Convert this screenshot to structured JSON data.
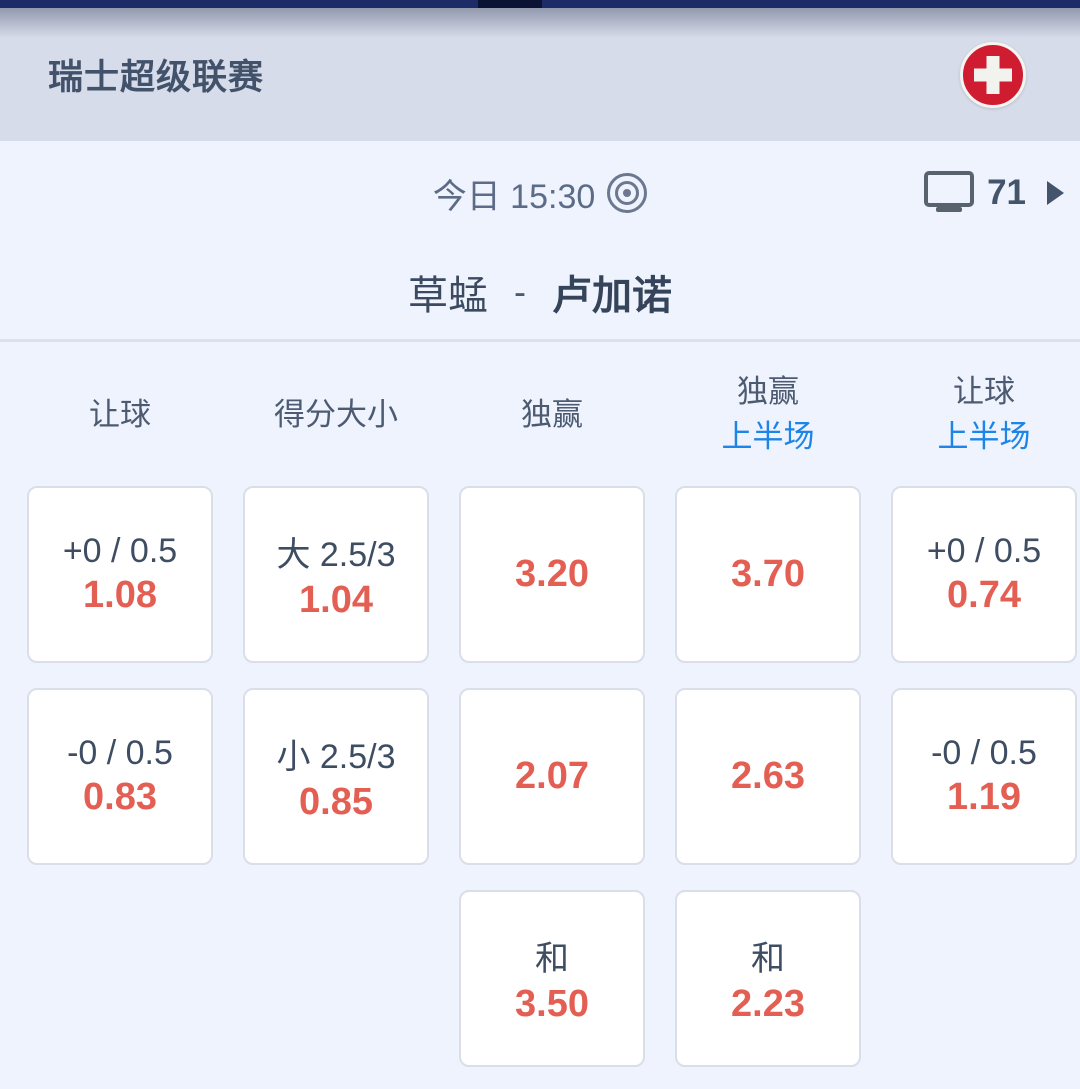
{
  "league_header": {
    "title": "瑞士超级联赛",
    "flag": "swiss-flag"
  },
  "match": {
    "time_label": "今日 15:30",
    "channel_count": "71",
    "home_team": "草蜢",
    "separator": "-",
    "away_team": "卢加诺"
  },
  "market_headers": [
    {
      "label": "让球",
      "sub": ""
    },
    {
      "label": "得分大小",
      "sub": ""
    },
    {
      "label": "独赢",
      "sub": ""
    },
    {
      "label": "独赢",
      "sub": "上半场"
    },
    {
      "label": "让球",
      "sub": "上半场"
    }
  ],
  "odds_rows": [
    [
      {
        "line": "+0 / 0.5",
        "odds": "1.08"
      },
      {
        "line": "大 2.5/3",
        "odds": "1.04"
      },
      {
        "line": "",
        "odds": "3.20"
      },
      {
        "line": "",
        "odds": "3.70"
      },
      {
        "line": "+0 / 0.5",
        "odds": "0.74"
      }
    ],
    [
      {
        "line": "-0 / 0.5",
        "odds": "0.83"
      },
      {
        "line": "小 2.5/3",
        "odds": "0.85"
      },
      {
        "line": "",
        "odds": "2.07"
      },
      {
        "line": "",
        "odds": "2.63"
      },
      {
        "line": "-0 / 0.5",
        "odds": "1.19"
      }
    ],
    [
      null,
      null,
      {
        "line": "和",
        "odds": "3.50"
      },
      {
        "line": "和",
        "odds": "2.23"
      },
      null
    ]
  ],
  "colors": {
    "status_bar_navy": "#1d2c66",
    "header_band": "#d7dcea",
    "body_background": "#eef3fd",
    "odds_red": "#e45f53",
    "half_time_blue": "#1d85e8",
    "swiss_flag_red": "#d01c31",
    "slate_text": "#3e4d62"
  }
}
